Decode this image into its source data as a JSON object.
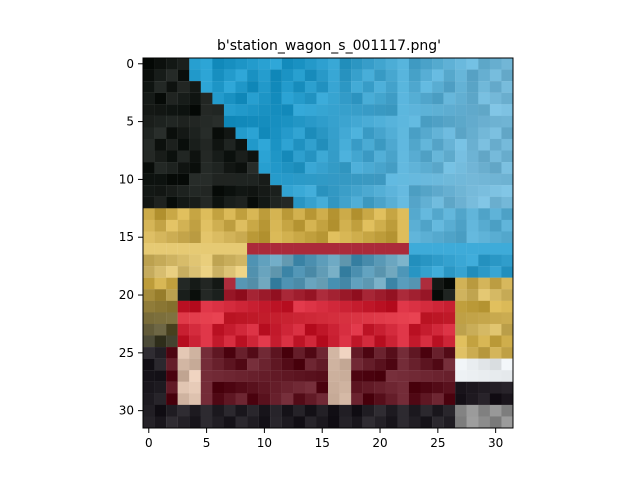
{
  "figure": {
    "title": "b'station_wagon_s_001117.png'",
    "x_ticks": [
      "0",
      "5",
      "10",
      "15",
      "20",
      "25",
      "30"
    ],
    "y_ticks": [
      "0",
      "5",
      "10",
      "15",
      "20",
      "25",
      "30"
    ]
  },
  "image": {
    "grid_size": 32,
    "subject": "red station wagon on road with tree and sky background",
    "palette": {
      "sky": "#1f97c8",
      "sky_light": "#72b6d6",
      "tree": "#1d2320",
      "tree_dark": "#141815",
      "yellow": "#c9a846",
      "yellow_light": "#d7bd6f",
      "car_red": "#c91f32",
      "car_dark_red": "#6b1824",
      "windshield": "#3f88aa",
      "grille_light": "#d8bca9",
      "shadow": "#18131a",
      "white": "#e9edf0",
      "gray": "#8f8f8f",
      "road": "#1f1c22"
    }
  }
}
